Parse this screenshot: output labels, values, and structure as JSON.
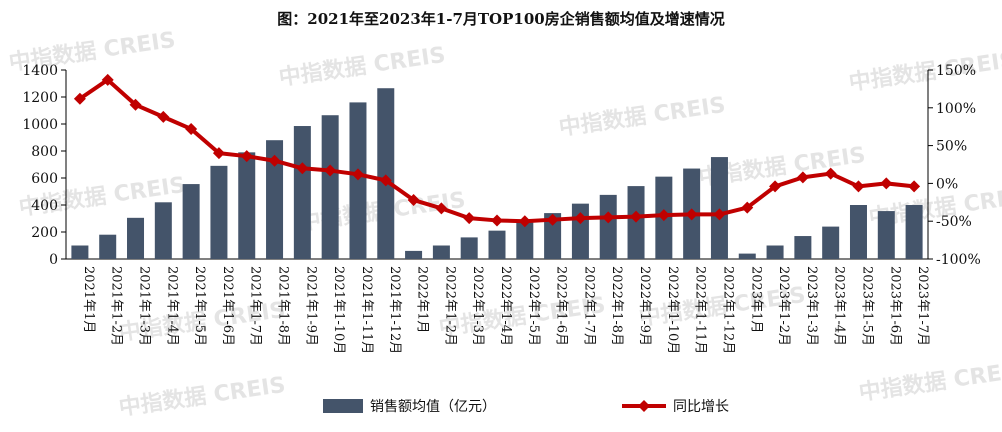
{
  "chart_data": {
    "type": "bar+line",
    "title": "图：2021年至2023年1-7月TOP100房企销售额均值及增速情况",
    "categories": [
      "2021年1月",
      "2021年1-2月",
      "2021年1-3月",
      "2021年1-4月",
      "2021年1-5月",
      "2021年1-6月",
      "2021年1-7月",
      "2021年1-8月",
      "2021年1-9月",
      "2021年1-10月",
      "2021年1-11月",
      "2021年1-12月",
      "2022年1月",
      "2022年1-2月",
      "2022年1-3月",
      "2022年1-4月",
      "2022年1-5月",
      "2022年1-6月",
      "2022年1-7月",
      "2022年1-8月",
      "2022年1-9月",
      "2022年1-10月",
      "2022年1-11月",
      "2022年1-12月",
      "2023年1月",
      "2023年1-2月",
      "2023年1-3月",
      "2023年1-4月",
      "2023年1-5月",
      "2023年1-6月",
      "2023年1-7月"
    ],
    "series": [
      {
        "name": "销售额均值（亿元）",
        "type": "bar",
        "axis": "left",
        "color": "#44546a",
        "values": [
          100,
          180,
          305,
          420,
          555,
          690,
          790,
          880,
          985,
          1065,
          1160,
          1265,
          60,
          100,
          160,
          210,
          270,
          340,
          410,
          475,
          540,
          610,
          670,
          755,
          40,
          100,
          170,
          240,
          400,
          355,
          400
        ]
      },
      {
        "name": "同比增长",
        "type": "line",
        "axis": "right",
        "color": "#c00000",
        "values": [
          112,
          137,
          104,
          88,
          72,
          40,
          36,
          30,
          20,
          17,
          12,
          4,
          -22,
          -33,
          -46,
          -49,
          -50,
          -48,
          -46,
          -45,
          -44,
          -42,
          -41,
          -41,
          -32,
          -4,
          8,
          13,
          -4,
          0,
          -4
        ]
      }
    ],
    "y_left": {
      "min": 0,
      "max": 1400,
      "ticks": [
        "0",
        "200",
        "400",
        "600",
        "800",
        "1000",
        "1200",
        "1400"
      ]
    },
    "y_right": {
      "min": -100,
      "max": 150,
      "ticks": [
        "-100%",
        "-50%",
        "0%",
        "50%",
        "100%",
        "150%"
      ]
    },
    "legend_position": "bottom",
    "grid": false
  },
  "watermark": "中指数据 CREIS"
}
